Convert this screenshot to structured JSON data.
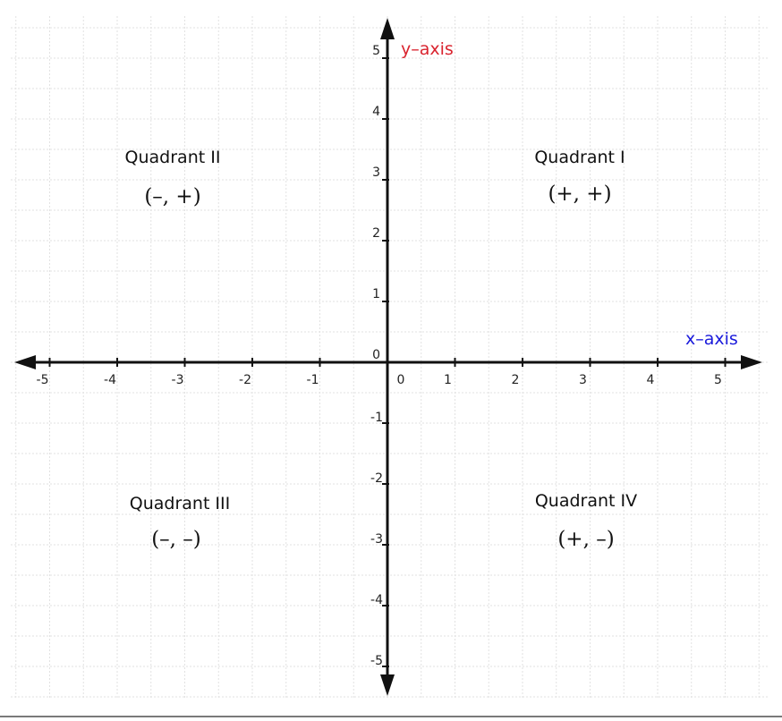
{
  "diagram": {
    "x_axis_label": "x–axis",
    "y_axis_label": "y–axis",
    "x_axis_color": "#1a1adb",
    "y_axis_color": "#d9232e",
    "axis_color": "#111111",
    "grid_color": "#e2e2e2",
    "x_range": [
      -5,
      5
    ],
    "y_range": [
      -5,
      5
    ],
    "x_ticks": [
      "-5",
      "-4",
      "-3",
      "-2",
      "-1",
      "0",
      "1",
      "2",
      "3",
      "4",
      "5"
    ],
    "y_ticks_positive": [
      "0",
      "1",
      "2",
      "3",
      "4",
      "5"
    ],
    "y_ticks_negative": [
      "-1",
      "-2",
      "-3",
      "-4",
      "-5"
    ],
    "quadrants": [
      {
        "name": "Quadrant I",
        "signs": "(+, +)"
      },
      {
        "name": "Quadrant II",
        "signs": "(–, +)"
      },
      {
        "name": "Quadrant III",
        "signs": "(–, –)"
      },
      {
        "name": "Quadrant IV",
        "signs": "(+, –)"
      }
    ]
  }
}
